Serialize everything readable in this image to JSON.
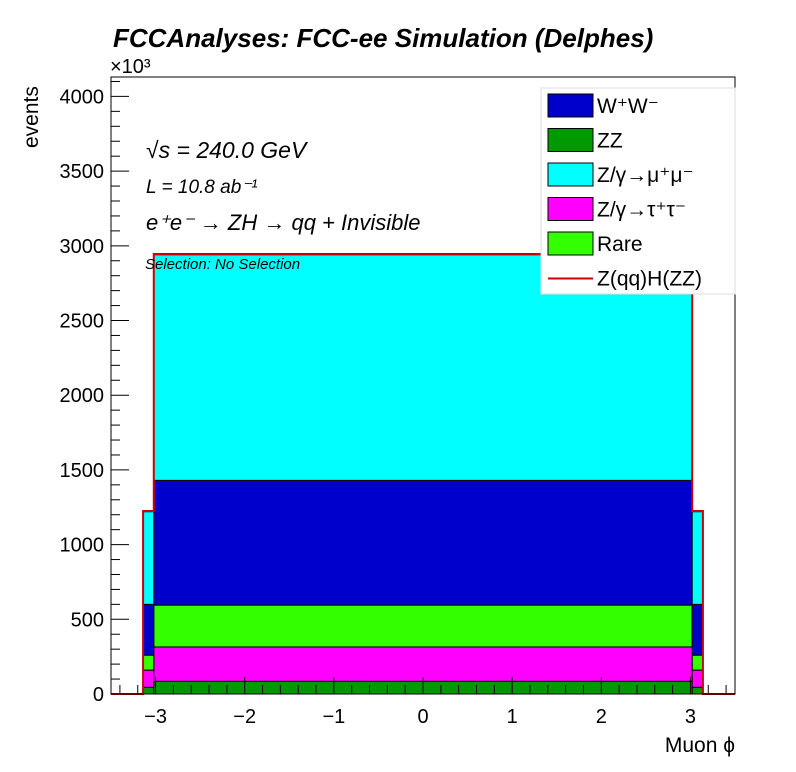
{
  "chart_data": {
    "type": "bar",
    "subtype": "stacked-histogram",
    "title": "FCCAnalyses: FCC-ee Simulation (Delphes)",
    "xlabel": "Muon ϕ",
    "ylabel": "events",
    "y_exponent": "×10³",
    "xlim": [
      -3.5,
      3.5
    ],
    "ylim": [
      0,
      4130
    ],
    "x_ticks": [
      -3,
      -2,
      -1,
      0,
      1,
      2,
      3
    ],
    "x_tick_labels": [
      "−3",
      "−2",
      "−1",
      "0",
      "1",
      "2",
      "3"
    ],
    "y_ticks": [
      0,
      500,
      1000,
      1500,
      2000,
      2500,
      3000,
      3500,
      4000
    ],
    "y_tick_labels": [
      "0",
      "500",
      "1000",
      "1500",
      "2000",
      "2500",
      "3000",
      "3500",
      "4000"
    ],
    "bins": [
      {
        "x0": -3.5,
        "x1": -3.14
      },
      {
        "x0": -3.14,
        "x1": -3.02
      },
      {
        "x0": -3.02,
        "x1": 3.02
      },
      {
        "x0": 3.02,
        "x1": 3.14
      },
      {
        "x0": 3.14,
        "x1": 3.5
      }
    ],
    "series": [
      {
        "name": "ZZ",
        "color": "#009900",
        "values": [
          0,
          45,
          85,
          45,
          0
        ]
      },
      {
        "name": "Z/γ→τ⁺τ⁻",
        "color": "#ff00ff",
        "values": [
          0,
          115,
          230,
          115,
          0
        ]
      },
      {
        "name": "Rare",
        "color": "#33ff00",
        "values": [
          0,
          100,
          280,
          100,
          0
        ]
      },
      {
        "name": "W⁺W⁻",
        "color": "#0000cc",
        "values": [
          0,
          340,
          835,
          340,
          0
        ]
      },
      {
        "name": "Z/γ→μ⁺μ⁻",
        "color": "#00ffff",
        "values": [
          0,
          620,
          1510,
          620,
          0
        ]
      }
    ],
    "signal": {
      "name": "Z(qq)H(ZZ)",
      "color": "#cc0000",
      "values": [
        0,
        1225,
        2945,
        1225,
        0
      ]
    },
    "legend": {
      "placement": "top-right",
      "entries": [
        {
          "label": "W⁺W⁻",
          "color": "#0000cc",
          "style": "box"
        },
        {
          "label": "ZZ",
          "color": "#009900",
          "style": "box"
        },
        {
          "label": "Z/γ→μ⁺μ⁻",
          "color": "#00ffff",
          "style": "box"
        },
        {
          "label": "Z/γ→τ⁺τ⁻",
          "color": "#ff00ff",
          "style": "box"
        },
        {
          "label": "Rare",
          "color": "#33ff00",
          "style": "box"
        },
        {
          "label": "Z(qq)H(ZZ)",
          "color": "#cc0000",
          "style": "line"
        }
      ]
    },
    "annotations": {
      "energy": "√s = 240.0 GeV",
      "lumi": "L = 10.8 ab⁻¹",
      "process": "e⁺e⁻ → ZH → qq + Invisible",
      "selection": "Selection: No Selection"
    }
  }
}
